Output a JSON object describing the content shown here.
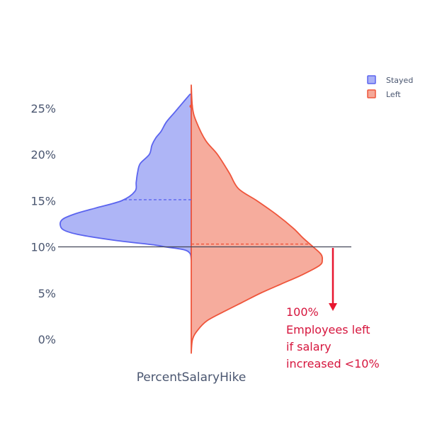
{
  "chart_data": {
    "type": "violin",
    "title": "",
    "xlabel": "PercentSalaryHike",
    "ylabel": "",
    "ylim": [
      -1.5,
      27
    ],
    "yticks": [
      0,
      5,
      10,
      15,
      20,
      25
    ],
    "ytick_labels": [
      "0%",
      "5%",
      "10%",
      "15%",
      "20%",
      "25%"
    ],
    "grid": false,
    "legend_position": "top-right",
    "series": [
      {
        "name": "Stayed",
        "side": "left",
        "fill": "#aab1f6",
        "stroke": "#5b64ef",
        "mean": 15.1,
        "profile": [
          [
            26.5,
            0.01
          ],
          [
            25.5,
            0.07
          ],
          [
            24.5,
            0.13
          ],
          [
            23.5,
            0.19
          ],
          [
            22.5,
            0.23
          ],
          [
            21.8,
            0.27
          ],
          [
            21.0,
            0.3
          ],
          [
            20.0,
            0.32
          ],
          [
            19.0,
            0.39
          ],
          [
            18.0,
            0.41
          ],
          [
            17.0,
            0.42
          ],
          [
            16.0,
            0.43
          ],
          [
            15.0,
            0.53
          ],
          [
            14.2,
            0.73
          ],
          [
            13.6,
            0.88
          ],
          [
            13.0,
            0.98
          ],
          [
            12.4,
            1.0
          ],
          [
            11.8,
            0.97
          ],
          [
            11.3,
            0.85
          ],
          [
            10.7,
            0.58
          ],
          [
            10.2,
            0.28
          ],
          [
            10.0,
            0.2
          ],
          [
            9.7,
            0.06
          ],
          [
            9.3,
            0.01
          ],
          [
            8.6,
            0.0
          ]
        ]
      },
      {
        "name": "Left",
        "side": "right",
        "fill": "#f5a898",
        "stroke": "#ef553b",
        "mean": 10.3,
        "profile": [
          [
            27.5,
            0.0
          ],
          [
            25.0,
            0.01
          ],
          [
            23.5,
            0.04
          ],
          [
            21.5,
            0.11
          ],
          [
            20.0,
            0.2
          ],
          [
            18.0,
            0.29
          ],
          [
            16.3,
            0.36
          ],
          [
            15.0,
            0.5
          ],
          [
            13.5,
            0.65
          ],
          [
            12.0,
            0.78
          ],
          [
            11.0,
            0.85
          ],
          [
            10.0,
            0.93
          ],
          [
            9.2,
            0.99
          ],
          [
            8.6,
            1.0
          ],
          [
            8.0,
            0.98
          ],
          [
            7.0,
            0.85
          ],
          [
            6.0,
            0.69
          ],
          [
            5.0,
            0.53
          ],
          [
            4.0,
            0.39
          ],
          [
            3.0,
            0.25
          ],
          [
            2.0,
            0.12
          ],
          [
            1.0,
            0.05
          ],
          [
            0.0,
            0.01
          ],
          [
            -1.5,
            0.0
          ]
        ]
      }
    ],
    "reference_line": {
      "y": 10
    },
    "annotation": {
      "lines": [
        "100%",
        "Employees left",
        "if salary",
        "increased <10%"
      ],
      "arrow_color": "#e8162f",
      "text_color": "#d6153d"
    }
  },
  "legend": {
    "items": [
      {
        "label": "Stayed",
        "fill": "#aab1f6",
        "stroke": "#5b64ef"
      },
      {
        "label": "Left",
        "fill": "#f5a898",
        "stroke": "#ef553b"
      }
    ]
  }
}
